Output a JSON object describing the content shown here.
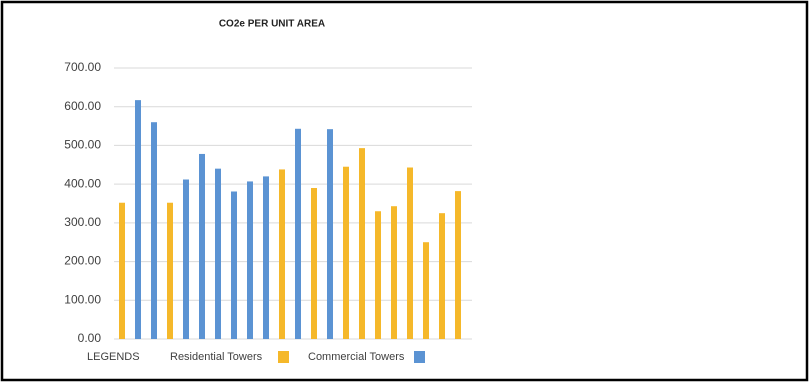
{
  "chart_data": {
    "type": "bar",
    "title": "CO2e PER UNIT AREA",
    "categories": [
      null,
      null,
      null,
      null,
      null,
      null,
      null,
      null,
      null,
      null,
      null,
      null,
      null,
      null,
      null,
      null,
      null,
      null,
      null,
      null,
      null,
      null
    ],
    "series": [
      {
        "name": "Residential Towers",
        "color": "#f5b82a",
        "values": [
          352,
          null,
          null,
          352,
          null,
          null,
          null,
          null,
          null,
          null,
          438,
          null,
          390,
          null,
          445,
          493,
          330,
          343,
          443,
          250,
          325,
          382
        ]
      },
      {
        "name": "Commercial Towers",
        "color": "#5b93d3",
        "values": [
          null,
          617,
          560,
          null,
          412,
          478,
          440,
          381,
          407,
          420,
          null,
          543,
          null,
          542,
          null,
          null,
          null,
          null,
          null,
          null,
          null,
          null
        ]
      }
    ],
    "legend_title": "LEGENDS",
    "ylim": [
      0,
      700
    ],
    "yticks": [
      {
        "value": 0,
        "label": "0.00"
      },
      {
        "value": 100,
        "label": "100.00"
      },
      {
        "value": 200,
        "label": "200.00"
      },
      {
        "value": 300,
        "label": "300.00"
      },
      {
        "value": 400,
        "label": "400.00"
      },
      {
        "value": 500,
        "label": "500.00"
      },
      {
        "value": 600,
        "label": "600.00"
      },
      {
        "value": 700,
        "label": "700.00"
      }
    ],
    "grid": true
  }
}
